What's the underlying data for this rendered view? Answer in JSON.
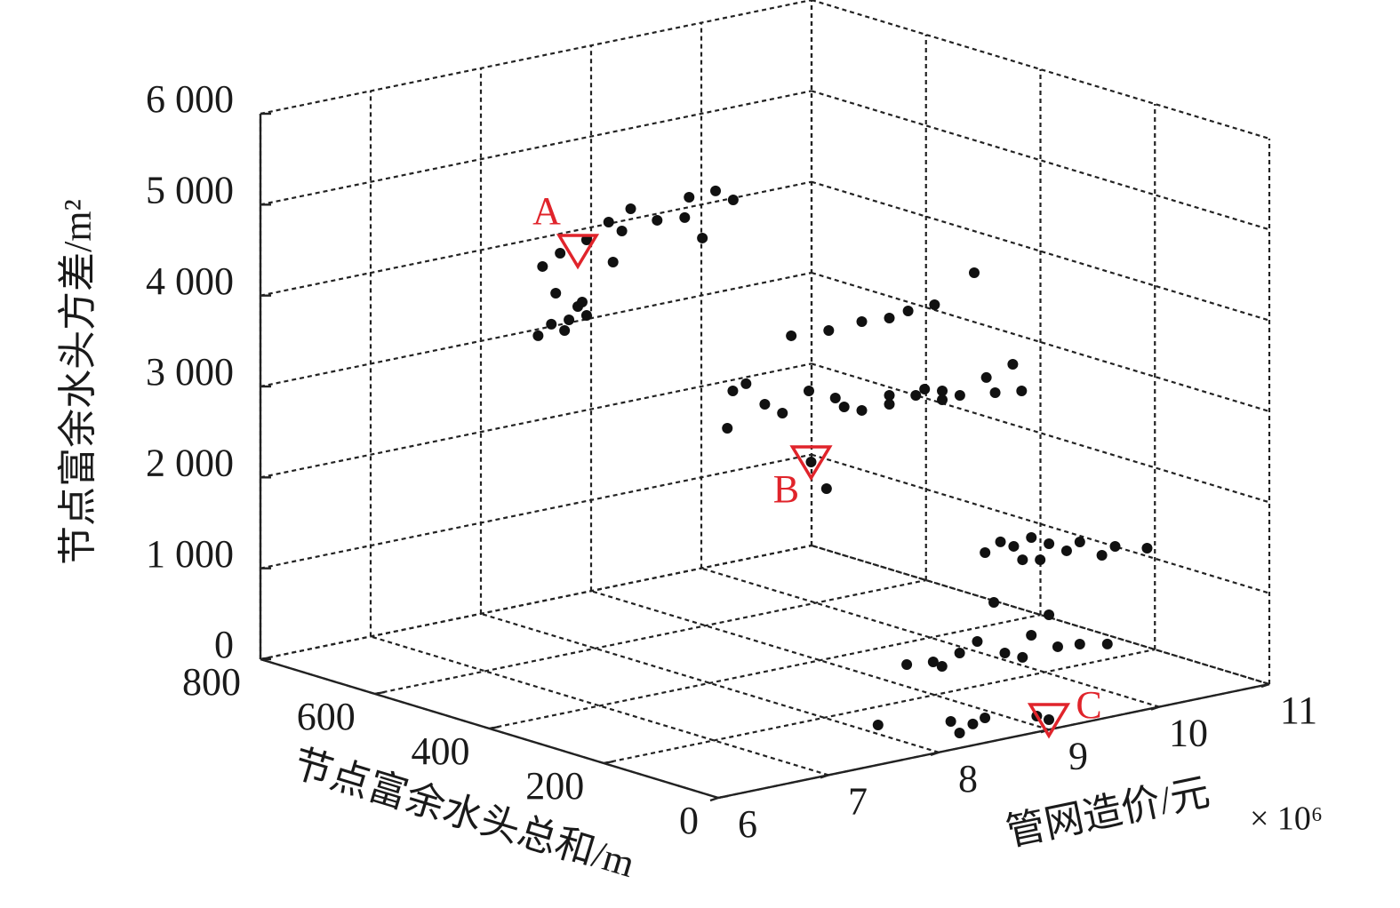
{
  "chart_data": {
    "type": "scatter3d",
    "xlabel": "管网造价/元",
    "x_multiplier": "× 10⁶",
    "ylabel": "节点富余水头总和/m",
    "zlabel": "节点富余水头方差/m²",
    "xlim": [
      6,
      11
    ],
    "ylim": [
      0,
      800
    ],
    "zlim": [
      0,
      6000
    ],
    "xticks": [
      6,
      7,
      8,
      9,
      10,
      11
    ],
    "yticks": [
      0,
      200,
      400,
      600,
      800
    ],
    "zticks": [
      0,
      {
        "value": 1000,
        "label": "1 000"
      },
      {
        "value": 2000,
        "label": "2 000"
      },
      {
        "value": 3000,
        "label": "3 000"
      },
      {
        "value": 4000,
        "label": "4 000"
      },
      {
        "value": 5000,
        "label": "5 000"
      },
      {
        "value": 6000,
        "label": "6 000"
      }
    ],
    "grid": true,
    "series": [
      {
        "color": "#111111",
        "x": [
          8.0,
          8.12,
          8.28,
          8.44,
          8.16,
          8.36,
          8.04,
          8.2,
          8.44,
          8.68,
          8.64,
          8.84,
          9.08,
          9.33,
          9.49,
          9.37,
          9.61,
          9.77,
          8.24,
          8.4,
          8.76,
          7.64,
          7.69,
          7.81,
          7.98,
          8.22,
          8.56,
          8.86,
          9.11,
          9.28,
          9.52,
          9.88,
          8.38,
          8.62,
          8.86,
          9.11,
          9.35,
          9.59,
          9.75,
          9.99,
          10.23,
          10.31,
          10.07,
          9.59,
          9.43,
          8.14,
          8.7,
          9.11,
          8.4,
          8.54,
          8.94,
          9.08,
          9.28,
          9.36,
          9.52,
          9.68,
          9.8,
          10.0,
          10.12,
          10.41,
          9.44,
          9.2,
          7.97,
          8.21,
          8.45,
          8.61,
          8.76,
          8.86,
          9.02,
          9.1,
          9.26,
          9.34,
          9.54,
          9.79,
          8.29,
          7.45,
          8.11,
          8.19,
          8.31,
          8.42,
          9.0,
          8.89
        ],
        "y": [
          700,
          700,
          700,
          700,
          700,
          700,
          700,
          700,
          700,
          700,
          700,
          700,
          700,
          700,
          700,
          700,
          700,
          700,
          700,
          700,
          700,
          300,
          300,
          300,
          300,
          300,
          300,
          300,
          300,
          300,
          300,
          300,
          300,
          300,
          300,
          300,
          300,
          300,
          300,
          300,
          300,
          300,
          300,
          300,
          300,
          300,
          300,
          300,
          300,
          300,
          100,
          100,
          100,
          100,
          100,
          100,
          100,
          100,
          100,
          100,
          100,
          100,
          50,
          50,
          50,
          50,
          50,
          50,
          50,
          50,
          50,
          50,
          50,
          50,
          50,
          0,
          0,
          0,
          0,
          0,
          0,
          0
        ],
        "z": [
          3248,
          3345,
          3353,
          3362,
          3676,
          3480,
          4000,
          4106,
          4192,
          3888,
          4338,
          4435,
          4248,
          4215,
          3950,
          4429,
          4438,
          4300,
          3246,
          3519,
          4210,
          3083,
          3481,
          3530,
          3262,
          3955,
          3928,
          3951,
          3927,
          3963,
          3971,
          4233,
          3309,
          3170,
          2974,
          2979,
          3017,
          3006,
          2917,
          3053,
          3139,
          2826,
          2866,
          2908,
          3065,
          3124,
          3053,
          3077,
          2522,
          2194,
          1771,
          1854,
          1607,
          1832,
          1724,
          1606,
          1673,
          1477,
          1544,
          1452,
          1567,
          1775,
          878,
          847,
          885,
          972,
          1364,
          782,
          694,
          918,
          1102,
          731,
          710,
          648,
          778,
          439,
          313,
          165,
          234,
          274,
          109,
          176
        ]
      }
    ],
    "annotations": [
      {
        "text": "A",
        "x": 8.36,
        "y": 700,
        "z": 4095,
        "color": "#e0242b"
      },
      {
        "text": "B",
        "x": 8.4,
        "y": 300,
        "z": 2522,
        "color": "#e0242b"
      },
      {
        "text": "C",
        "x": 9.0,
        "y": 0,
        "z": 109,
        "color": "#e0242b"
      }
    ]
  }
}
